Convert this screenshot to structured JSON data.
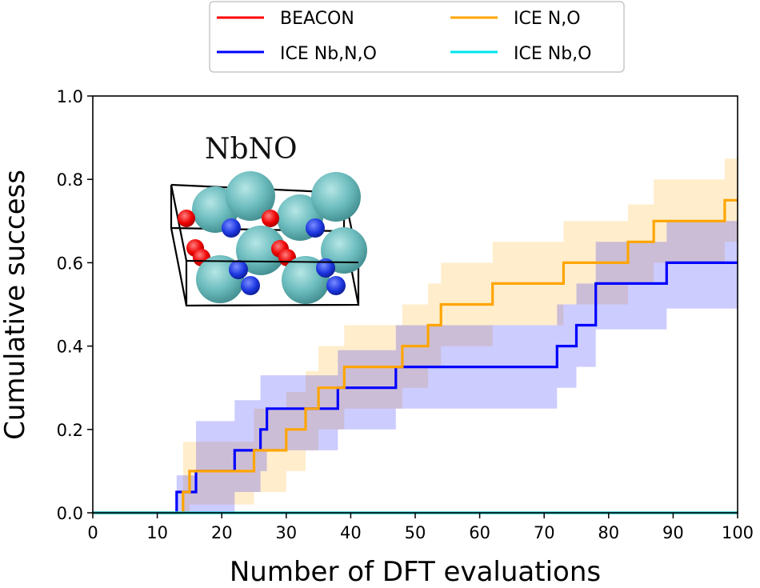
{
  "chart_data": {
    "type": "line",
    "title": "",
    "xlabel": "Number of DFT evaluations",
    "ylabel": "Cumulative success",
    "xlim": [
      0,
      100
    ],
    "ylim": [
      0,
      1.0
    ],
    "xticks": [
      0,
      10,
      20,
      30,
      40,
      50,
      60,
      70,
      80,
      90,
      100
    ],
    "yticks": [
      "0.0",
      "0.2",
      "0.4",
      "0.6",
      "0.8",
      "1.0"
    ],
    "grid": false,
    "legend_placement": "top-center, above plot",
    "inset_label": "NbNO",
    "series": [
      {
        "name": "BEACON",
        "color": "#ff0000",
        "step": true,
        "x": [
          0,
          100
        ],
        "y": [
          0,
          0
        ]
      },
      {
        "name": "ICE N,O",
        "color": "#ffa500",
        "step": true,
        "x": [
          0,
          14,
          15,
          25,
          27,
          30,
          33,
          35,
          38,
          39,
          47,
          48,
          52,
          54,
          62,
          68,
          73,
          83,
          87,
          98,
          100
        ],
        "y": [
          0,
          0.05,
          0.1,
          0.15,
          0.15,
          0.2,
          0.25,
          0.3,
          0.3,
          0.35,
          0.35,
          0.4,
          0.45,
          0.5,
          0.55,
          0.55,
          0.6,
          0.65,
          0.7,
          0.75,
          0.75
        ],
        "band_lower": [
          0,
          0,
          0.02,
          0.05,
          0.05,
          0.1,
          0.15,
          0.2,
          0.2,
          0.25,
          0.25,
          0.3,
          0.35,
          0.4,
          0.45,
          0.45,
          0.5,
          0.55,
          0.6,
          0.65,
          0.65
        ],
        "band_upper": [
          0,
          0.17,
          0.17,
          0.25,
          0.25,
          0.29,
          0.34,
          0.4,
          0.4,
          0.45,
          0.45,
          0.5,
          0.55,
          0.6,
          0.65,
          0.65,
          0.7,
          0.74,
          0.8,
          0.85,
          0.85
        ]
      },
      {
        "name": "ICE Nb,N,O",
        "color": "#0000ff",
        "step": true,
        "x": [
          0,
          13,
          14,
          16,
          22,
          24,
          26,
          27,
          37,
          38,
          47,
          50,
          72,
          74,
          75,
          76,
          78,
          89,
          100
        ],
        "y": [
          0,
          0.05,
          0.05,
          0.1,
          0.15,
          0.15,
          0.2,
          0.25,
          0.25,
          0.3,
          0.35,
          0.35,
          0.4,
          0.4,
          0.45,
          0.45,
          0.55,
          0.6,
          0.6
        ],
        "band_lower": [
          0,
          0,
          0,
          0,
          0.05,
          0.05,
          0.1,
          0.15,
          0.15,
          0.2,
          0.25,
          0.25,
          0.3,
          0.3,
          0.35,
          0.35,
          0.44,
          0.49,
          0.49
        ],
        "band_upper": [
          0,
          0.09,
          0.09,
          0.22,
          0.27,
          0.27,
          0.33,
          0.33,
          0.33,
          0.39,
          0.45,
          0.45,
          0.5,
          0.5,
          0.55,
          0.55,
          0.65,
          0.7,
          0.7
        ]
      },
      {
        "name": "ICE Nb,O",
        "color": "#00e5ee",
        "step": true,
        "x": [
          0,
          100
        ],
        "y": [
          0,
          0
        ]
      }
    ],
    "legend_order": [
      "BEACON",
      "ICE Nb,N,O",
      "ICE N,O",
      "ICE Nb,O"
    ]
  }
}
